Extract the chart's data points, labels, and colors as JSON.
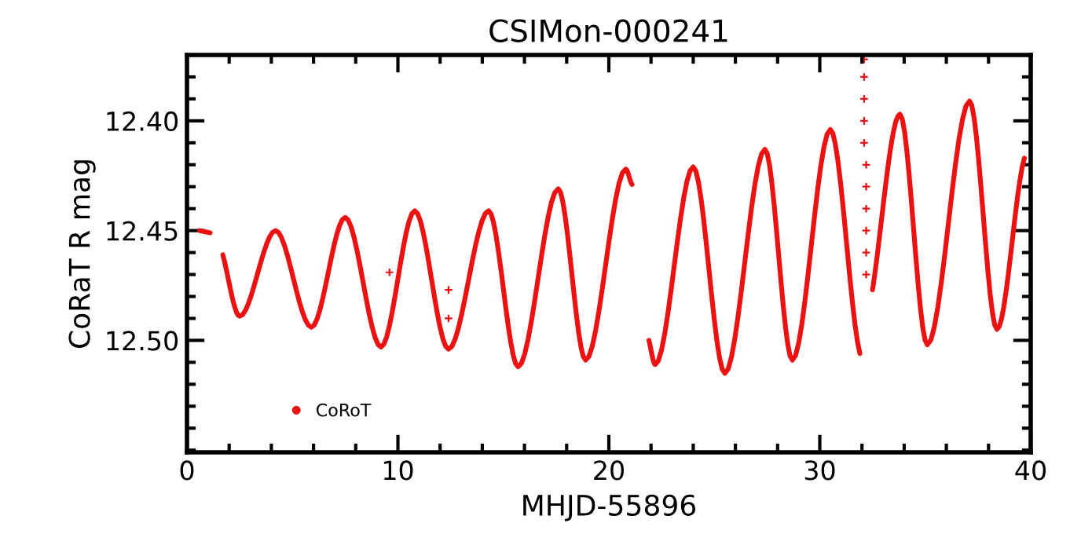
{
  "chart_data": {
    "type": "line",
    "title": "CSIMon-000241",
    "xlabel": "MHJD-55896",
    "ylabel": "CoRaT R mag",
    "xlim": [
      0,
      40
    ],
    "xticks": [
      0,
      10,
      20,
      30,
      40
    ],
    "ylim": [
      12.551,
      12.37
    ],
    "yticks": [
      {
        "value": 12.4,
        "label": "12.40"
      },
      {
        "value": 12.45,
        "label": "12.45"
      },
      {
        "value": 12.5,
        "label": "12.50"
      }
    ],
    "grid": false,
    "legend": "bottom left",
    "marker": "none",
    "line_style": "solid",
    "series": [
      {
        "name": "CoRoT",
        "color": "#ee1111",
        "x": [
          0.6,
          1.1,
          null,
          1.7,
          2.5,
          4.2,
          5.9,
          7.5,
          9.2,
          10.8,
          12.4,
          14.3,
          15.7,
          17.6,
          18.9,
          20.8,
          21.1,
          null,
          21.9,
          22.2,
          24.0,
          25.5,
          27.4,
          28.7,
          30.5,
          31.9,
          null,
          32.5,
          33.8,
          35.1,
          37.1,
          38.4,
          39.7
        ],
        "values": [
          12.45,
          12.451,
          null,
          12.461,
          12.489,
          12.45,
          12.494,
          12.444,
          12.503,
          12.441,
          12.504,
          12.441,
          12.512,
          12.431,
          12.509,
          12.422,
          12.429,
          null,
          12.5,
          12.511,
          12.421,
          12.515,
          12.413,
          12.509,
          12.404,
          12.506,
          null,
          12.477,
          12.397,
          12.502,
          12.391,
          12.495,
          12.417
        ]
      },
      {
        "type": "scatter",
        "marker": "cross",
        "color": "#ee1111",
        "x": [
          9.6,
          12.4,
          12.4,
          32.1,
          32.1,
          32.1,
          32.1,
          32.1,
          32.2,
          32.2,
          32.2,
          32.2,
          32.2,
          32.2
        ],
        "values": [
          12.469,
          12.477,
          12.49,
          12.372,
          12.38,
          12.39,
          12.4,
          12.41,
          12.42,
          12.43,
          12.44,
          12.45,
          12.46,
          12.47
        ]
      }
    ]
  }
}
